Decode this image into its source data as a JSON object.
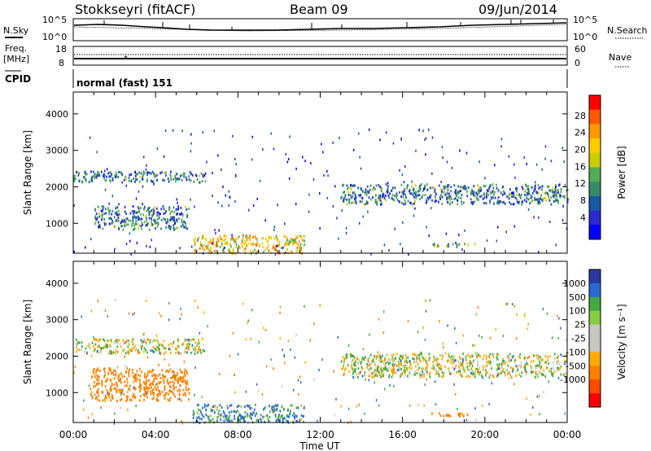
{
  "header": {
    "station": "Stokkseyri (fitACF)",
    "beam": "Beam 09",
    "date": "09/Jun/2014"
  },
  "top_panels": {
    "nsky_label": "N.Sky",
    "nsearch_label": "N.Search",
    "nsky_ticks": [
      "10^5",
      "10^0"
    ],
    "nsearch_ticks": [
      "10^5",
      "10^0"
    ],
    "freq_label_1": "Freq.",
    "freq_label_2": "[MHz]",
    "freq_ticks": [
      "18",
      "8"
    ],
    "nave_label": "Nave",
    "nave_ticks": [
      "60",
      "0"
    ],
    "cpid_label": "CPID",
    "cpid_value": "normal (fast) 151"
  },
  "colorbars": {
    "power": {
      "label": "Power [dB]",
      "ticks": [
        "28",
        "24",
        "20",
        "16",
        "12",
        "8",
        "4"
      ],
      "colors": [
        "#ff0000",
        "#ff5a00",
        "#ff9900",
        "#ffcc00",
        "#cccc00",
        "#55aa55",
        "#3a8a6a",
        "#1a5aa0",
        "#2a2ad0",
        "#0000ff"
      ]
    },
    "velocity": {
      "label": "Velocity [m s⁻¹]",
      "ticks": [
        "1000",
        "500",
        "100",
        "25",
        "-25",
        "-100",
        "-500",
        "-1000"
      ],
      "colors": [
        "#2a3aa0",
        "#2a6ad0",
        "#44a844",
        "#88cc44",
        "#c8c8c0",
        "#c8c8c0",
        "#ffaa00",
        "#ff8000",
        "#ff4a00",
        "#ff0000"
      ]
    }
  },
  "chart_data": [
    {
      "type": "heatmap",
      "title": "",
      "xlabel": "Time UT",
      "ylabel": "Slant Range [km]",
      "xlim": [
        "00:00",
        "24:00"
      ],
      "ylim": [
        180,
        4600
      ],
      "x_ticks": [
        "00:00",
        "04:00",
        "08:00",
        "12:00",
        "16:00",
        "20:00",
        "00:00"
      ],
      "y_ticks": [
        1000,
        2000,
        3000,
        4000
      ],
      "colorbar": "Power [dB]",
      "regions": [
        {
          "t0": 0.0,
          "t1": 6.4,
          "r0": 2150,
          "r1": 2450,
          "value": 10
        },
        {
          "t0": 1.0,
          "t1": 5.6,
          "r0": 850,
          "r1": 1500,
          "value": 10
        },
        {
          "t0": 5.8,
          "t1": 11.2,
          "r0": 200,
          "r1": 700,
          "value": 20
        },
        {
          "t0": 13.0,
          "t1": 24.0,
          "r0": 1550,
          "r1": 2100,
          "value": 10
        },
        {
          "t0": 17.3,
          "t1": 19.6,
          "r0": 380,
          "r1": 470,
          "value": 14
        }
      ]
    },
    {
      "type": "heatmap",
      "title": "",
      "xlabel": "Time UT",
      "ylabel": "Slant Range [km]",
      "xlim": [
        "00:00",
        "24:00"
      ],
      "ylim": [
        180,
        4600
      ],
      "x_ticks": [
        "00:00",
        "04:00",
        "08:00",
        "12:00",
        "16:00",
        "20:00",
        "00:00"
      ],
      "y_ticks": [
        1000,
        2000,
        3000,
        4000
      ],
      "colorbar": "Velocity [m s⁻¹]",
      "regions": [
        {
          "t0": 0.0,
          "t1": 6.4,
          "r0": 2100,
          "r1": 2500,
          "value": 0
        },
        {
          "t0": 0.8,
          "t1": 5.6,
          "r0": 800,
          "r1": 1700,
          "value": -200
        },
        {
          "t0": 5.8,
          "t1": 11.2,
          "r0": 200,
          "r1": 700,
          "value": 100
        },
        {
          "t0": 13.0,
          "t1": 24.0,
          "r0": 1450,
          "r1": 2100,
          "value": 0
        },
        {
          "t0": 17.3,
          "t1": 19.6,
          "r0": 380,
          "r1": 470,
          "value": -200
        }
      ]
    }
  ]
}
